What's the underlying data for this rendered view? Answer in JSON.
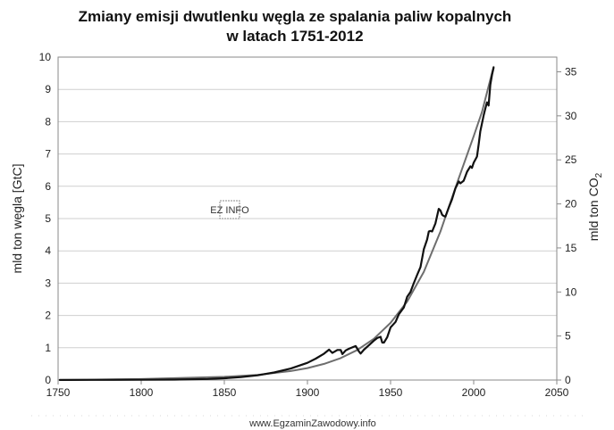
{
  "chart_data": {
    "type": "line",
    "title_line1": "Zmiany emisji dwutlenku węgla ze spalania paliw kopalnych",
    "title_line2": "w latach 1751-2012",
    "ylabel": "mld ton węgla [GtC]",
    "y2label_main": "mld ton CO",
    "y2label_sub": "2",
    "xlim": [
      1750,
      2050
    ],
    "ylim": [
      0,
      10
    ],
    "y2lim": [
      0,
      36.67
    ],
    "x_ticks": [
      "1750",
      "1800",
      "1850",
      "1900",
      "1950",
      "2000",
      "2050"
    ],
    "y_ticks": [
      "0",
      "1",
      "2",
      "3",
      "4",
      "5",
      "6",
      "7",
      "8",
      "9",
      "10"
    ],
    "y2_ticks": [
      "0",
      "5",
      "10",
      "15",
      "20",
      "25",
      "30",
      "35"
    ],
    "grid": true,
    "series": [
      {
        "style": "dark-thick",
        "color": "#111111",
        "points": [
          [
            1751,
            0.003
          ],
          [
            1770,
            0.005
          ],
          [
            1800,
            0.008
          ],
          [
            1820,
            0.014
          ],
          [
            1840,
            0.033
          ],
          [
            1850,
            0.054
          ],
          [
            1860,
            0.091
          ],
          [
            1870,
            0.147
          ],
          [
            1880,
            0.236
          ],
          [
            1890,
            0.356
          ],
          [
            1900,
            0.534
          ],
          [
            1905,
            0.663
          ],
          [
            1910,
            0.819
          ],
          [
            1913,
            0.943
          ],
          [
            1915,
            0.84
          ],
          [
            1918,
            0.93
          ],
          [
            1920,
            0.932
          ],
          [
            1921,
            0.803
          ],
          [
            1923,
            0.918
          ],
          [
            1925,
            0.97
          ],
          [
            1927,
            1.01
          ],
          [
            1929,
            1.053
          ],
          [
            1930,
            0.97
          ],
          [
            1931,
            0.88
          ],
          [
            1932,
            0.82
          ],
          [
            1934,
            0.94
          ],
          [
            1937,
            1.08
          ],
          [
            1940,
            1.22
          ],
          [
            1942,
            1.3
          ],
          [
            1944,
            1.34
          ],
          [
            1945,
            1.16
          ],
          [
            1946,
            1.16
          ],
          [
            1948,
            1.33
          ],
          [
            1950,
            1.63
          ],
          [
            1953,
            1.8
          ],
          [
            1955,
            2.04
          ],
          [
            1958,
            2.25
          ],
          [
            1960,
            2.58
          ],
          [
            1962,
            2.73
          ],
          [
            1964,
            3.0
          ],
          [
            1966,
            3.26
          ],
          [
            1968,
            3.5
          ],
          [
            1970,
            4.05
          ],
          [
            1972,
            4.35
          ],
          [
            1973,
            4.6
          ],
          [
            1974,
            4.62
          ],
          [
            1975,
            4.6
          ],
          [
            1977,
            4.85
          ],
          [
            1979,
            5.3
          ],
          [
            1980,
            5.25
          ],
          [
            1981,
            5.12
          ],
          [
            1982,
            5.08
          ],
          [
            1983,
            5.06
          ],
          [
            1985,
            5.34
          ],
          [
            1987,
            5.6
          ],
          [
            1989,
            5.93
          ],
          [
            1991,
            6.15
          ],
          [
            1992,
            6.09
          ],
          [
            1994,
            6.17
          ],
          [
            1996,
            6.45
          ],
          [
            1998,
            6.62
          ],
          [
            1999,
            6.57
          ],
          [
            2000,
            6.73
          ],
          [
            2002,
            6.92
          ],
          [
            2003,
            7.3
          ],
          [
            2004,
            7.7
          ],
          [
            2006,
            8.2
          ],
          [
            2007,
            8.4
          ],
          [
            2008,
            8.6
          ],
          [
            2009,
            8.5
          ],
          [
            2010,
            9.14
          ],
          [
            2011,
            9.45
          ],
          [
            2012,
            9.67
          ]
        ]
      },
      {
        "style": "gray-smooth",
        "color": "#6e6e6e",
        "points": [
          [
            1751,
            0.0
          ],
          [
            1800,
            0.03
          ],
          [
            1850,
            0.1
          ],
          [
            1870,
            0.16
          ],
          [
            1890,
            0.28
          ],
          [
            1900,
            0.37
          ],
          [
            1910,
            0.5
          ],
          [
            1920,
            0.68
          ],
          [
            1930,
            0.93
          ],
          [
            1940,
            1.28
          ],
          [
            1950,
            1.77
          ],
          [
            1960,
            2.43
          ],
          [
            1970,
            3.35
          ],
          [
            1980,
            4.6
          ],
          [
            1990,
            6.1
          ],
          [
            2000,
            7.55
          ],
          [
            2005,
            8.3
          ],
          [
            2010,
            9.3
          ],
          [
            2012,
            9.7
          ]
        ]
      }
    ]
  },
  "watermark_small": "EZ INFO",
  "footer": "www.EgzaminZawodowy.info"
}
